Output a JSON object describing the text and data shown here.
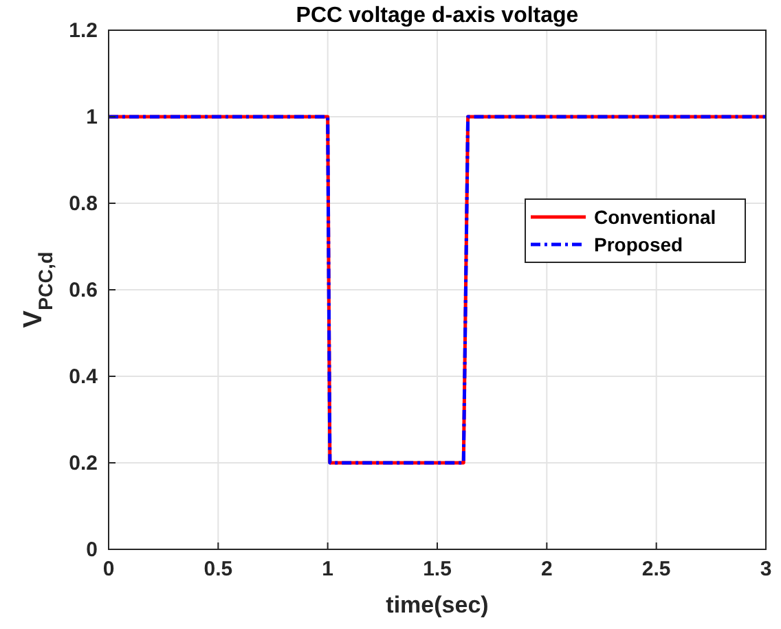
{
  "chart_data": {
    "type": "line",
    "title": "PCC voltage d-axis voltage",
    "xlabel": "time(sec)",
    "ylabel": "V$_{PCC,d}$",
    "x": [
      0,
      1.0,
      1.01,
      1.62,
      1.64,
      3
    ],
    "series": [
      {
        "name": "Conventional",
        "color": "#ff0000",
        "values": [
          1,
          1,
          0.2,
          0.2,
          1,
          1
        ],
        "line_style": "solid"
      },
      {
        "name": "Proposed",
        "color": "#0000ff",
        "values": [
          1,
          1,
          0.2,
          0.2,
          1,
          1
        ],
        "line_style": "dashed"
      }
    ],
    "xlim": [
      0,
      3
    ],
    "xticks": [
      0,
      0.5,
      1,
      1.5,
      2,
      2.5,
      3
    ],
    "ylim": [
      0,
      1.2
    ],
    "yticks": [
      0,
      0.2,
      0.4,
      0.6,
      0.8,
      1,
      1.2
    ],
    "grid": true,
    "legend": "right"
  }
}
